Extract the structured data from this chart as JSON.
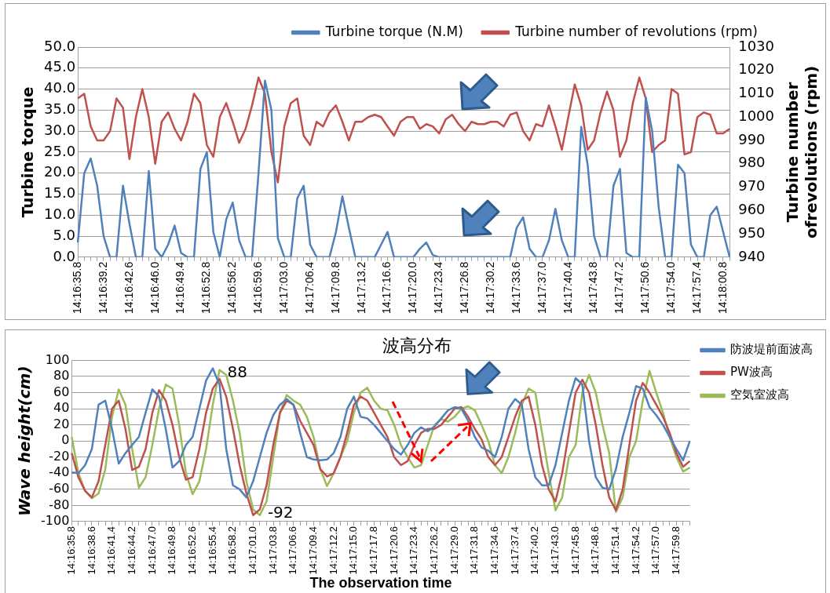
{
  "chart_data": [
    {
      "type": "line",
      "ylabel": "Turbine torque",
      "y2label": "Turbine number ofrevolutions (rpm)",
      "categories": [
        "14:16:35.8",
        null,
        null,
        null,
        "14:16:39.2",
        null,
        null,
        null,
        "14:16:42.6",
        null,
        null,
        null,
        "14:16:46.0",
        null,
        null,
        null,
        "14:16:49.4",
        null,
        null,
        null,
        "14:16:52.8",
        null,
        null,
        null,
        "14:16:56.2",
        null,
        null,
        null,
        "14:16:59.6",
        null,
        null,
        null,
        "14:17:03.0",
        null,
        null,
        null,
        "14:17:06.4",
        null,
        null,
        null,
        "14:17:09.8",
        null,
        null,
        null,
        "14:17:13.2",
        null,
        null,
        null,
        "14:17:16.6",
        null,
        null,
        null,
        "14:17:20.0",
        null,
        null,
        null,
        "14:17:23.4",
        null,
        null,
        null,
        "14:17:26.8",
        null,
        null,
        null,
        "14:17:30.2",
        null,
        null,
        null,
        "14:17:33.6",
        null,
        null,
        null,
        "14:17:37.0",
        null,
        null,
        null,
        "14:17:40.4",
        null,
        null,
        null,
        "14:17:43.8",
        null,
        null,
        null,
        "14:17:47.2",
        null,
        null,
        null,
        "14:17:50.6",
        null,
        null,
        null,
        "14:17:54.0",
        null,
        null,
        null,
        "14:17:57.4",
        null,
        null,
        null,
        "14:18:00.8",
        null
      ],
      "series": [
        {
          "name": "Turbine torque (N.M)",
          "color": "#4f81bd",
          "values": [
            3.5,
            20,
            23.5,
            17,
            5,
            0,
            0,
            17,
            8,
            0,
            0,
            20.5,
            2,
            0,
            3,
            7.5,
            1,
            0,
            0,
            21,
            25,
            6,
            0,
            9,
            13,
            4,
            0,
            0,
            20,
            42,
            35,
            4.5,
            0,
            0,
            14,
            17,
            3,
            0,
            0,
            0,
            6,
            14.5,
            7,
            0,
            0,
            0,
            0,
            3,
            6,
            0,
            0,
            0,
            0,
            2,
            3.5,
            0.5,
            0,
            0,
            0,
            0,
            0,
            0,
            0,
            0,
            0,
            0,
            0,
            0,
            7,
            9.5,
            2,
            0,
            0,
            4,
            11.5,
            4,
            0,
            0,
            31,
            22,
            5,
            0,
            0,
            17,
            21,
            1,
            0,
            0,
            38,
            30,
            12,
            0,
            0,
            22,
            20,
            3,
            0,
            0,
            10,
            12,
            6,
            0
          ]
        },
        {
          "name": "Turbine number of revolutions (rpm)",
          "color": "#c0504d",
          "axis": "y2",
          "values": [
            1008,
            1010,
            996,
            990,
            990,
            994,
            1008,
            1004,
            982,
            1000,
            1012,
            1000,
            980,
            998,
            1002,
            995,
            990,
            998,
            1010,
            1006,
            988,
            983,
            1000,
            1006,
            998,
            989,
            995,
            1005,
            1017,
            1010,
            985,
            972,
            996,
            1006,
            1008,
            992,
            988,
            998,
            996,
            1002,
            1005,
            998,
            990,
            998,
            998,
            1000,
            1001,
            1000,
            996,
            992,
            998,
            1000,
            1000,
            995,
            997,
            996,
            993,
            999,
            1001,
            997,
            994,
            998,
            997,
            997,
            998,
            998,
            996,
            1001,
            1002,
            994,
            990,
            997,
            996,
            1005,
            996,
            986,
            1000,
            1014,
            1005,
            986,
            990,
            1002,
            1011,
            1003,
            983,
            990,
            1006,
            1017,
            1008,
            985,
            988,
            990,
            1012,
            1010,
            984,
            985,
            1000,
            1002,
            1001,
            993,
            993,
            995
          ]
        }
      ],
      "ylim": [
        0,
        50
      ],
      "yticks": [
        {
          "value": 0,
          "label": "0.0"
        },
        {
          "value": 5,
          "label": "5.0"
        },
        {
          "value": 10,
          "label": "10.0"
        },
        {
          "value": 15,
          "label": "15.0"
        },
        {
          "value": 20,
          "label": "20.0"
        },
        {
          "value": 25,
          "label": "25.0"
        },
        {
          "value": 30,
          "label": "30.0"
        },
        {
          "value": 35,
          "label": "35.0"
        },
        {
          "value": 40,
          "label": "40.0"
        },
        {
          "value": 45,
          "label": "45.0"
        },
        {
          "value": 50,
          "label": "50.0"
        }
      ],
      "y2lim": [
        940,
        1030
      ],
      "y2ticks": [
        940,
        950,
        960,
        970,
        980,
        990,
        1000,
        1010,
        1020,
        1030
      ],
      "grid": "y",
      "legend": "top right",
      "marker": "none"
    },
    {
      "type": "line",
      "title": "波高分布",
      "xlabel": "The observation time",
      "ylabel": "Wave height(cm)",
      "categories": [
        "14:16:35.8",
        null,
        null,
        "14:16:38.6",
        null,
        null,
        "14:16:41.4",
        null,
        null,
        "14:16:44.2",
        null,
        null,
        "14:16:47.0",
        null,
        null,
        "14:16:49.8",
        null,
        null,
        "14:16:52.6",
        null,
        null,
        "14:16:55.4",
        null,
        null,
        "14:16:58.2",
        null,
        null,
        "14:17:01.0",
        null,
        null,
        "14:17:03.8",
        null,
        null,
        "14:17:06.6",
        null,
        null,
        "14:17:09.4",
        null,
        null,
        "14:17:12.2",
        null,
        null,
        "14:17:15.0",
        null,
        null,
        "14:17:17.8",
        null,
        null,
        "14:17:20.6",
        null,
        null,
        "14:17:23.4",
        null,
        null,
        "14:17:26.2",
        null,
        null,
        "14:17:29.0",
        null,
        null,
        "14:17:31.8",
        null,
        null,
        "14:17:34.6",
        null,
        null,
        "14:17:37.4",
        null,
        null,
        "14:17:40.2",
        null,
        null,
        "14:17:43.0",
        null,
        null,
        "14:17:45.8",
        null,
        null,
        "14:17:48.6",
        null,
        null,
        "14:17:51.4",
        null,
        null,
        "14:17:54.2",
        null,
        null,
        "14:17:57.0",
        null,
        null,
        "14:17:59.8",
        null,
        null
      ],
      "series": [
        {
          "name": "防波堤前面波高",
          "color": "#4f81bd",
          "values": [
            -39,
            -40,
            -30,
            -10,
            45,
            50,
            15,
            -28,
            -15,
            -5,
            5,
            35,
            64,
            55,
            15,
            -33,
            -25,
            -5,
            5,
            40,
            75,
            90,
            70,
            -10,
            -55,
            -60,
            -70,
            -50,
            -20,
            10,
            32,
            45,
            52,
            45,
            10,
            -20,
            -23,
            -24,
            -23,
            -15,
            5,
            40,
            55,
            30,
            28,
            20,
            10,
            0,
            -10,
            -17,
            -5,
            10,
            17,
            12,
            18,
            28,
            38,
            42,
            40,
            25,
            5,
            -8,
            -12,
            -20,
            5,
            40,
            52,
            45,
            -10,
            -45,
            -55,
            -55,
            -30,
            10,
            50,
            78,
            70,
            0,
            -45,
            -58,
            -60,
            -35,
            5,
            35,
            68,
            65,
            42,
            32,
            20,
            5,
            -10,
            -24,
            0
          ]
        },
        {
          "name": "PW波高",
          "color": "#c0504d",
          "values": [
            -15,
            -45,
            -62,
            -70,
            -50,
            -5,
            40,
            50,
            15,
            -36,
            -32,
            -10,
            35,
            63,
            50,
            20,
            -20,
            -48,
            -45,
            -10,
            35,
            65,
            77,
            55,
            15,
            -30,
            -65,
            -92,
            -85,
            -55,
            -5,
            35,
            50,
            45,
            25,
            10,
            -5,
            -35,
            -44,
            -40,
            -20,
            10,
            45,
            55,
            50,
            35,
            20,
            5,
            -20,
            -30,
            -25,
            -5,
            10,
            15,
            15,
            20,
            30,
            40,
            42,
            30,
            15,
            2,
            -20,
            -30,
            -20,
            5,
            30,
            50,
            55,
            20,
            -30,
            -60,
            -75,
            -40,
            10,
            60,
            76,
            60,
            20,
            -30,
            -70,
            -86,
            -60,
            -5,
            50,
            72,
            60,
            45,
            30,
            10,
            -15,
            -32,
            -25
          ]
        },
        {
          "name": "空気室波高",
          "color": "#9bbb59",
          "values": [
            5,
            -40,
            -62,
            -71,
            -65,
            -35,
            30,
            64,
            45,
            -10,
            -58,
            -45,
            -5,
            40,
            70,
            65,
            20,
            -40,
            -66,
            -50,
            -10,
            45,
            88,
            82,
            50,
            10,
            -50,
            -85,
            -92,
            -75,
            -20,
            35,
            57,
            50,
            45,
            30,
            5,
            -35,
            -56,
            -40,
            -20,
            0,
            35,
            60,
            66,
            50,
            40,
            38,
            20,
            -5,
            -20,
            -33,
            -30,
            -5,
            20,
            27,
            24,
            30,
            40,
            43,
            38,
            20,
            0,
            -30,
            -40,
            -20,
            10,
            45,
            65,
            60,
            10,
            -40,
            -86,
            -70,
            -20,
            -5,
            60,
            82,
            60,
            20,
            -15,
            -88,
            -70,
            -20,
            0,
            50,
            87,
            60,
            35,
            5,
            -20,
            -38,
            -33
          ],
          "value_labels": [
            null,
            null,
            null,
            null,
            null,
            null,
            null,
            null,
            null,
            null,
            null,
            null,
            null,
            null,
            null,
            null,
            null,
            null,
            null,
            null,
            null,
            null,
            "88",
            null,
            null,
            null,
            null,
            null,
            "-92",
            null,
            null,
            null,
            null,
            null,
            null,
            null,
            null,
            null,
            null,
            null,
            null,
            null,
            null,
            null,
            null,
            null,
            null,
            null,
            null,
            null,
            null,
            null,
            null,
            null,
            null,
            null,
            null,
            null,
            null,
            null,
            null,
            null,
            null,
            null,
            null,
            null,
            null,
            null,
            null,
            null,
            null,
            null,
            null,
            null,
            null,
            null,
            null,
            null,
            null,
            null,
            null,
            null,
            null,
            null,
            null,
            null,
            null,
            null,
            null,
            null,
            null,
            null,
            null
          ]
        }
      ],
      "ylim": [
        -100,
        100
      ],
      "yticks": [
        -100,
        -80,
        -60,
        -40,
        -20,
        0,
        20,
        40,
        60,
        80,
        100
      ],
      "grid": "y",
      "legend": "right",
      "marker": "none"
    }
  ]
}
